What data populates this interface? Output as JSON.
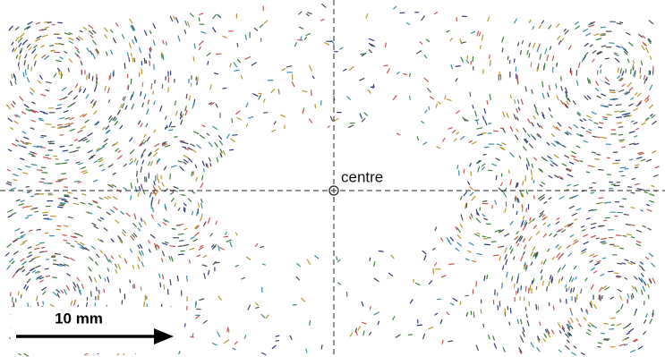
{
  "labels": {
    "centre": "centre",
    "scale_bar": "10 mm"
  }
}
